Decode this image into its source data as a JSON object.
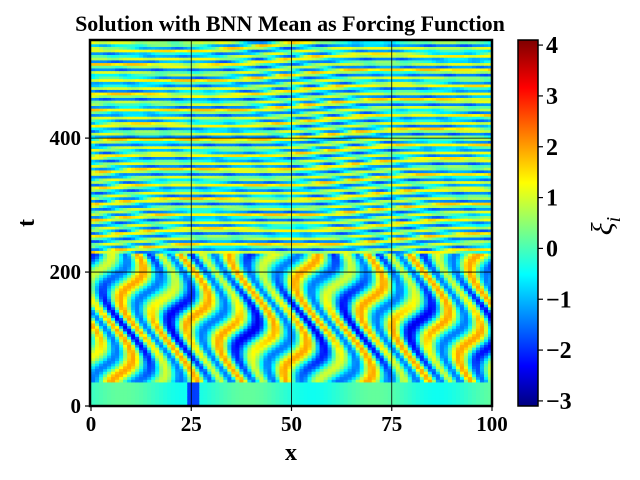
{
  "chart_data": {
    "type": "heatmap",
    "title": "Solution with BNN Mean as Forcing Function",
    "xlabel": "x",
    "ylabel": "t",
    "colorbar_label": "ξ",
    "colorbar_label_subscript": "i",
    "xlim": [
      0,
      100
    ],
    "ylim": [
      0,
      545
    ],
    "x_ticks": [
      0,
      25,
      50,
      75,
      100
    ],
    "x_tick_labels": [
      "0",
      "25",
      "50",
      "75",
      "100"
    ],
    "y_ticks": [
      0,
      200,
      400
    ],
    "y_tick_labels": [
      "0",
      "200",
      "400"
    ],
    "colorbar_range": [
      -3.1,
      4.1
    ],
    "colorbar_ticks": [
      -3,
      -2,
      -1,
      0,
      1,
      2,
      3,
      4
    ],
    "colorbar_tick_labels": [
      "−3",
      "−2",
      "−1",
      "0",
      "1",
      "2",
      "3",
      "4"
    ],
    "colormap": "jet",
    "grid": true,
    "description_note": ""
  }
}
